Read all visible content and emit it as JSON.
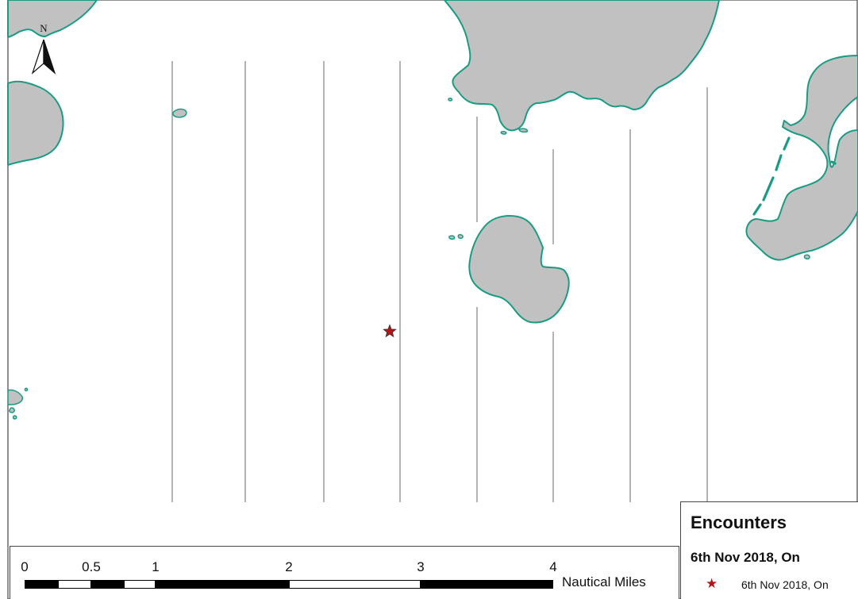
{
  "map": {
    "north_label": "N",
    "land_fill": "#c1c1c1",
    "coast_color": "#1a9c84",
    "track_color": "#8a8a8a",
    "encounter_marker": {
      "symbol": "star-icon",
      "color": "#b01818"
    }
  },
  "scale_bar": {
    "ticks": [
      "0",
      "0.5",
      "1",
      "2",
      "3",
      "4"
    ],
    "unit": "Nautical Miles"
  },
  "legend": {
    "title": "Encounters",
    "group": "6th Nov 2018, On",
    "item_symbol": "★",
    "item_label": "6th Nov 2018, On"
  }
}
